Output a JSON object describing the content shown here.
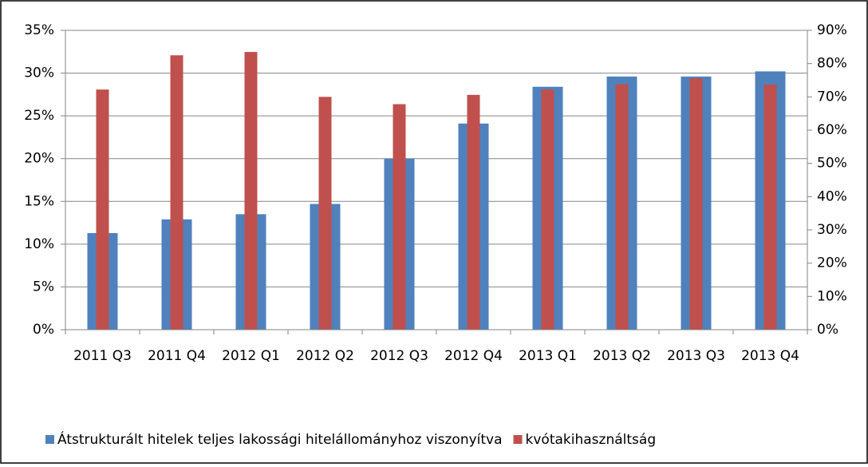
{
  "chart_data": {
    "type": "bar",
    "categories": [
      "2011 Q3",
      "2011 Q4",
      "2012 Q1",
      "2012 Q2",
      "2012 Q3",
      "2012 Q4",
      "2013 Q1",
      "2013 Q2",
      "2013 Q3",
      "2013 Q4"
    ],
    "series": [
      {
        "name": "Átstrukturált hitelek teljes lakossági hitelállományhoz viszonyítva",
        "color": "#4f81bd",
        "values": [
          11.3,
          12.9,
          13.5,
          14.7,
          20.0,
          24.1,
          28.4,
          29.6,
          29.6,
          30.2
        ]
      },
      {
        "name": "kvótakihasználtság",
        "color": "#c0504d",
        "axis": "y2",
        "values": [
          72.2,
          82.5,
          83.5,
          70.0,
          67.8,
          70.6,
          72.2,
          73.8,
          75.6,
          73.7
        ]
      }
    ],
    "ylim": [
      0,
      35
    ],
    "yticks": [
      {
        "value": 0,
        "label": "0%"
      },
      {
        "value": 5,
        "label": "5%"
      },
      {
        "value": 10,
        "label": "10%"
      },
      {
        "value": 15,
        "label": "15%"
      },
      {
        "value": 20,
        "label": "20%"
      },
      {
        "value": 25,
        "label": "25%"
      },
      {
        "value": 30,
        "label": "30%"
      },
      {
        "value": 35,
        "label": "35%"
      }
    ],
    "y2lim": [
      0,
      90
    ],
    "y2ticks": [
      {
        "value": 0,
        "label": "0%"
      },
      {
        "value": 10,
        "label": "10%"
      },
      {
        "value": 20,
        "label": "20%"
      },
      {
        "value": 30,
        "label": "30%"
      },
      {
        "value": 40,
        "label": "40%"
      },
      {
        "value": 50,
        "label": "50%"
      },
      {
        "value": 60,
        "label": "60%"
      },
      {
        "value": 70,
        "label": "70%"
      },
      {
        "value": 80,
        "label": "80%"
      },
      {
        "value": 90,
        "label": "90%"
      }
    ],
    "grid": true,
    "legend": "bottom"
  }
}
